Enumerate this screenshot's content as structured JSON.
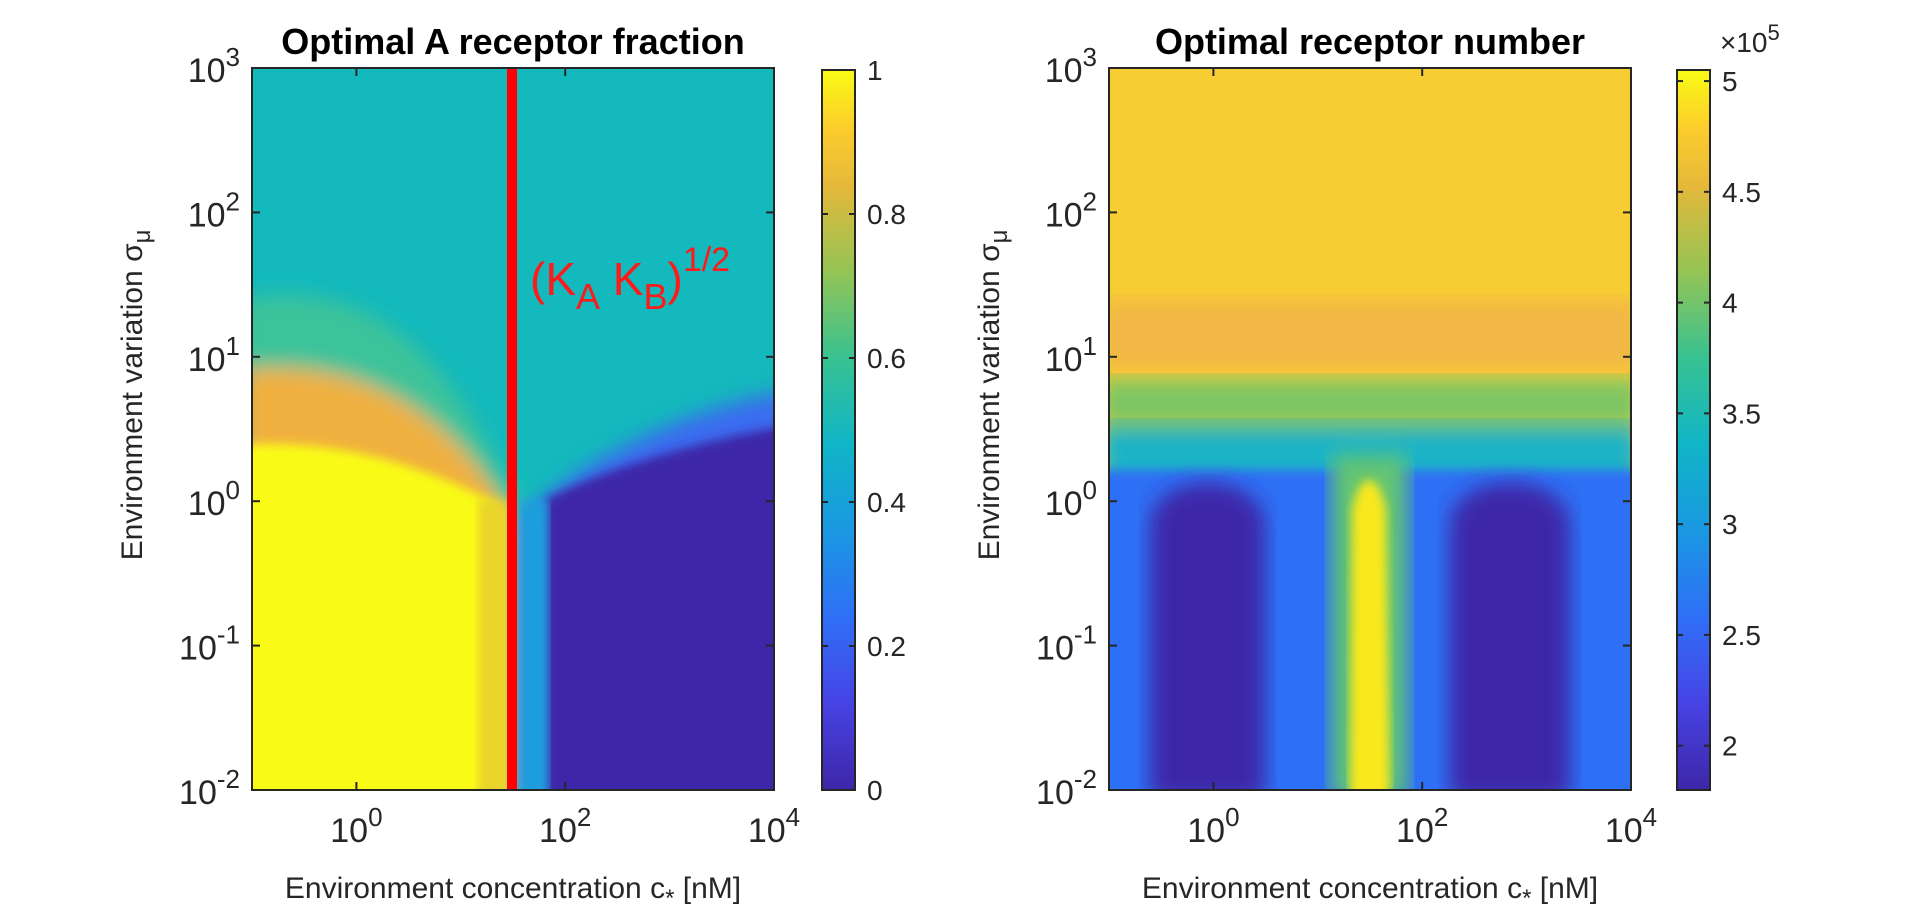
{
  "figure": {
    "caption_annotation": {
      "text": "(K",
      "sub_a": "A",
      "mid": " K",
      "sub_b": "B",
      "close": ")",
      "sup": "1/2"
    },
    "exponent_label": {
      "times": "×10",
      "power": "5"
    }
  },
  "chart_data": [
    {
      "type": "heatmap",
      "title": "Optimal A receptor fraction",
      "xlabel": {
        "main": "Environment concentration c",
        "sub": "*",
        "unit": " [nM]"
      },
      "ylabel": {
        "main": "Environment variation σ",
        "sub": "μ"
      },
      "xscale": "log",
      "yscale": "log",
      "xlim": [
        0.1,
        10000
      ],
      "ylim": [
        0.01,
        1000
      ],
      "xticks": [
        {
          "base": "10",
          "exp": "0",
          "value": 1
        },
        {
          "base": "10",
          "exp": "2",
          "value": 100
        },
        {
          "base": "10",
          "exp": "4",
          "value": 10000
        }
      ],
      "yticks": [
        {
          "base": "10",
          "exp": "-2",
          "value": 0.01
        },
        {
          "base": "10",
          "exp": "-1",
          "value": 0.1
        },
        {
          "base": "10",
          "exp": "0",
          "value": 1
        },
        {
          "base": "10",
          "exp": "1",
          "value": 10
        },
        {
          "base": "10",
          "exp": "2",
          "value": 100
        },
        {
          "base": "10",
          "exp": "3",
          "value": 1000
        }
      ],
      "colorbar": {
        "range": [
          0,
          1
        ],
        "ticks": [
          "0",
          "0.2",
          "0.4",
          "0.6",
          "0.8",
          "1"
        ],
        "tick_values": [
          0,
          0.2,
          0.4,
          0.6,
          0.8,
          1
        ]
      },
      "colormap": "parula",
      "reference_line": {
        "x": 30,
        "color": "#ff0000",
        "label": "(KA KB)^1/2"
      },
      "regions": [
        {
          "description": "high variation",
          "sigma_min": 10,
          "value": 0.45
        },
        {
          "description": "low variation, c below (KA KB)^1/2",
          "value": 1.0
        },
        {
          "description": "low variation, c above (KA KB)^1/2",
          "value": 0.0
        }
      ]
    },
    {
      "type": "heatmap",
      "title": "Optimal receptor number",
      "xlabel": {
        "main": "Environment concentration c",
        "sub": "*",
        "unit": " [nM]"
      },
      "ylabel": {
        "main": "Environment variation σ",
        "sub": "μ"
      },
      "xscale": "log",
      "yscale": "log",
      "xlim": [
        0.1,
        10000
      ],
      "ylim": [
        0.01,
        1000
      ],
      "xticks": [
        {
          "base": "10",
          "exp": "0",
          "value": 1
        },
        {
          "base": "10",
          "exp": "2",
          "value": 100
        },
        {
          "base": "10",
          "exp": "4",
          "value": 10000
        }
      ],
      "yticks": [
        {
          "base": "10",
          "exp": "-2",
          "value": 0.01
        },
        {
          "base": "10",
          "exp": "-1",
          "value": 0.1
        },
        {
          "base": "10",
          "exp": "0",
          "value": 1
        },
        {
          "base": "10",
          "exp": "1",
          "value": 10
        },
        {
          "base": "10",
          "exp": "2",
          "value": 100
        },
        {
          "base": "10",
          "exp": "3",
          "value": 1000
        }
      ],
      "colorbar": {
        "range": [
          180000,
          505000
        ],
        "multiplier": "×10^5",
        "ticks": [
          "2",
          "2.5",
          "3",
          "3.5",
          "4",
          "4.5",
          "5"
        ],
        "tick_values": [
          200000,
          250000,
          300000,
          350000,
          400000,
          450000,
          500000
        ]
      },
      "colormap": "parula",
      "regions": [
        {
          "description": "high variation",
          "sigma_min": 10,
          "value": 460000
        },
        {
          "description": "low variation minima",
          "c_centers": [
            1,
            1000
          ],
          "value": 190000
        },
        {
          "description": "low variation peak",
          "c_center": 30,
          "value": 500000
        }
      ]
    }
  ]
}
